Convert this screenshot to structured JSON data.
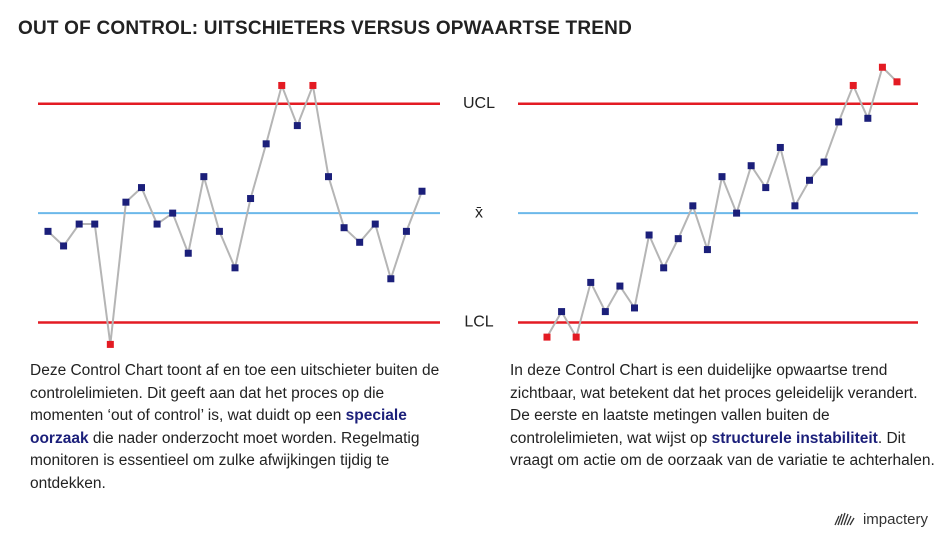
{
  "title": "OUT OF CONTROL: UITSCHIETERS VERSUS OPWAARTSE TREND",
  "chart_data": [
    {
      "type": "control",
      "values": [
        -0.5,
        -0.9,
        -0.3,
        -0.3,
        -3.6,
        0.3,
        0.7,
        -0.3,
        0,
        -1.1,
        1.0,
        -0.5,
        -1.5,
        0.4,
        1.9,
        3.5,
        2.4,
        3.5,
        1.0,
        -0.4,
        -0.8,
        -0.3,
        -1.8,
        -0.5,
        0.6
      ],
      "ylim": [
        -4,
        4.5
      ],
      "yticks": [
        {
          "value": -3,
          "label": "LCL"
        },
        {
          "value": 0,
          "label": "x̄"
        },
        {
          "value": 3,
          "label": "UCL"
        }
      ],
      "line_color": "#b5b5b5",
      "point_color": "#1b1f7a",
      "out_color": "#e31b23",
      "limit_color": "#e31b23",
      "center_color": "#6cb8ea"
    },
    {
      "type": "control",
      "values": [
        -3.4,
        -2.7,
        -3.4,
        -1.9,
        -2.7,
        -2.0,
        -2.6,
        -0.6,
        -1.5,
        -0.7,
        0.2,
        -1.0,
        1.0,
        0,
        1.3,
        0.7,
        1.8,
        0.2,
        0.9,
        1.4,
        2.5,
        3.5,
        2.6,
        4.0,
        3.6
      ],
      "ylim": [
        -4,
        4.5
      ],
      "yticks": [
        -3,
        0,
        3
      ],
      "line_color": "#b5b5b5",
      "point_color": "#1b1f7a",
      "out_color": "#e31b23",
      "limit_color": "#e31b23",
      "center_color": "#6cb8ea"
    }
  ],
  "descriptions": [
    [
      "Deze Control Chart toont af en toe een uitschieter buiten de controlelimieten. Dit geeft aan dat het proces op die momenten ‘out of control’ is, wat duidt op een ",
      "speciale oorzaak",
      " die nader onderzocht moet worden. Regelmatig monitoren is essentieel om zulke afwijkingen tijdig te ontdekken."
    ],
    [
      "In deze Control Chart is een duidelijke opwaartse trend zichtbaar, wat betekent dat het proces geleidelijk verandert. De eerste en laatste metingen vallen buiten de controlelimieten, wat wijst op ",
      "structurele instabiliteit",
      ". Dit vraagt om actie om de oorzaak van de variatie te achterhalen."
    ]
  ],
  "logo": "impactery"
}
